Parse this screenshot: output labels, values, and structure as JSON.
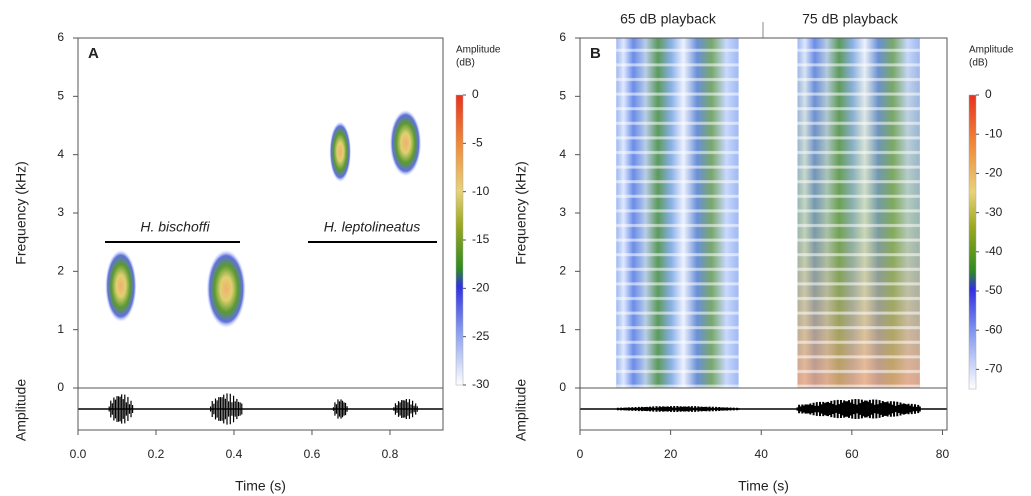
{
  "chart_data": [
    {
      "type": "spectrogram",
      "label": "A",
      "xlabel": "Time (s)",
      "ylabel": "Frequency (kHz)",
      "amplitude_label": "Amplitude",
      "xlim": [
        0,
        0.936
      ],
      "xticks": [
        {
          "value": 0,
          "label": "0.0"
        },
        0.2,
        0.4,
        0.6,
        0.8
      ],
      "ylim": [
        0,
        6
      ],
      "yticks": [
        0,
        1,
        2,
        3,
        4,
        5,
        6
      ],
      "colorbar_title": [
        "Amplitude",
        "(dB)"
      ],
      "clim": [
        -30,
        0
      ],
      "cticks": [
        0,
        -5,
        -10,
        -15,
        -20,
        -25,
        -30
      ],
      "annotations": [
        "H. bischoffi",
        "H. leptolineatus"
      ],
      "calls": [
        {
          "t": [
            0.08,
            0.14
          ],
          "f": [
            1.2,
            2.3
          ]
        },
        {
          "t": [
            0.34,
            0.42
          ],
          "f": [
            1.1,
            2.3
          ]
        },
        {
          "t": [
            0.655,
            0.69
          ],
          "f": [
            3.6,
            4.5
          ]
        },
        {
          "t": [
            0.81,
            0.87
          ],
          "f": [
            3.7,
            4.7
          ]
        }
      ]
    },
    {
      "type": "spectrogram",
      "label": "B",
      "xlabel": "Time (s)",
      "ylabel": "Frequency (kHz)",
      "amplitude_label": "Amplitude",
      "xlim": [
        0,
        81
      ],
      "xticks": [
        0,
        20,
        40,
        60,
        80
      ],
      "ylim": [
        0,
        6
      ],
      "yticks": [
        0,
        1,
        2,
        3,
        4,
        5,
        6
      ],
      "colorbar_title": [
        "Amplitude",
        "(dB)"
      ],
      "clim": [
        -75,
        0
      ],
      "cticks": [
        0,
        -10,
        -20,
        -30,
        -40,
        -50,
        -60,
        -70
      ],
      "annotations": [
        "65 dB playback",
        "75 dB playback"
      ],
      "calls": [
        {
          "t": [
            8,
            35
          ],
          "f": [
            0,
            6
          ]
        },
        {
          "t": [
            48,
            75
          ],
          "f": [
            0,
            6
          ]
        }
      ]
    }
  ]
}
